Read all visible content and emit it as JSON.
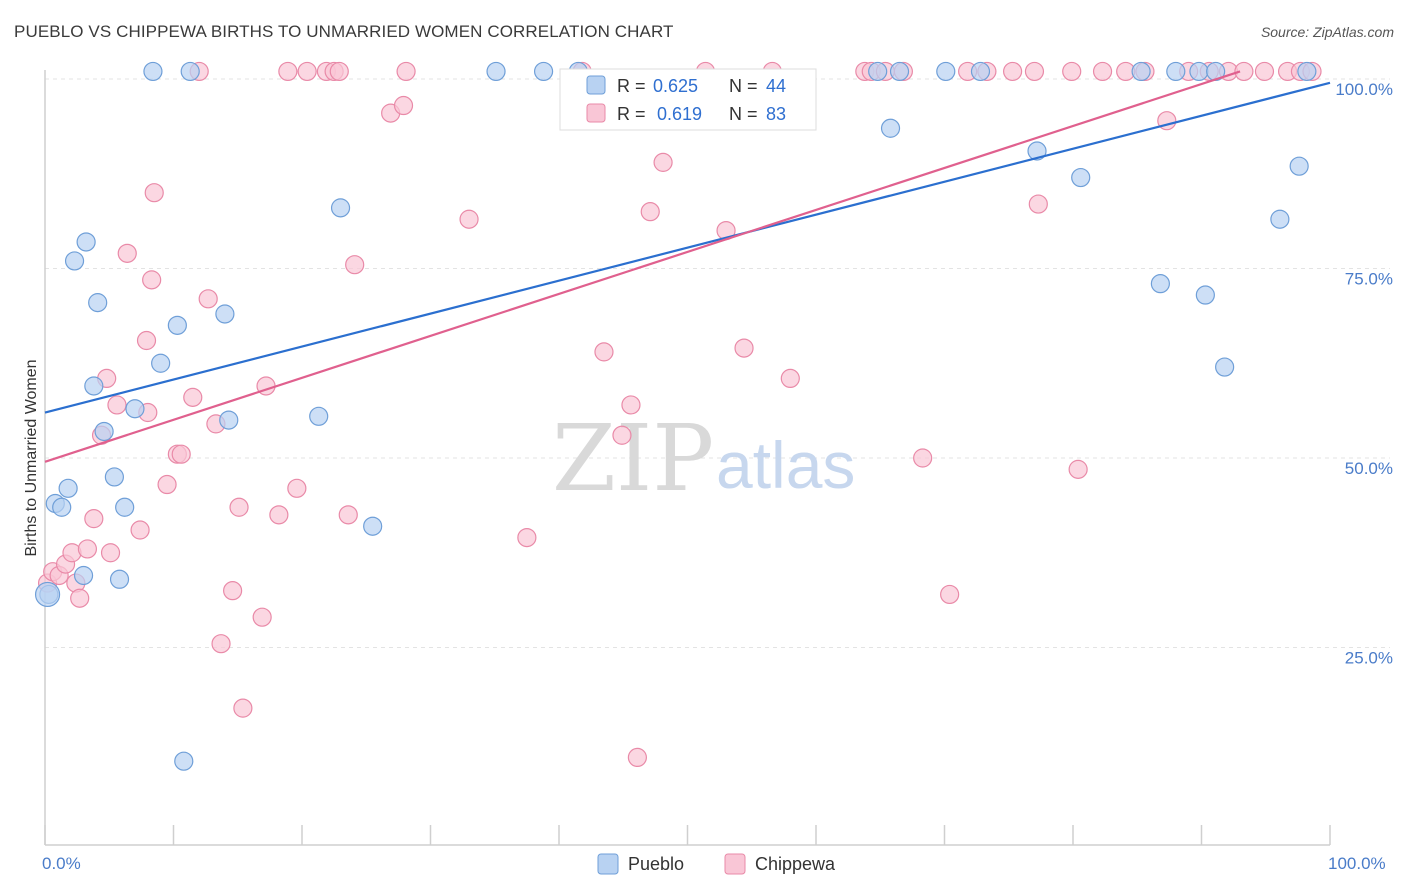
{
  "title": "PUEBLO VS CHIPPEWA BIRTHS TO UNMARRIED WOMEN CORRELATION CHART",
  "source": "Source: ZipAtlas.com",
  "watermark": {
    "zip": "ZIP",
    "atlas": "atlas"
  },
  "legend": {
    "r_label": "R =",
    "n_label": "N =",
    "pueblo": {
      "r": "0.625",
      "n": "44"
    },
    "chippewa": {
      "r": "0.619",
      "n": "83"
    }
  },
  "bottom_legend": {
    "pueblo": "Pueblo",
    "chippewa": "Chippewa"
  },
  "colors": {
    "pueblo_fill": "#b8d2f2",
    "pueblo_stroke": "#6f9fd8",
    "pueblo_line": "#2b6fcf",
    "chippewa_fill": "#f9c6d6",
    "chippewa_stroke": "#e98aa8",
    "chippewa_line": "#e0608e",
    "grid": "#e3e3e3",
    "tick_label": "#4a7cc9"
  },
  "chart_data": {
    "type": "scatter",
    "title": "PUEBLO VS CHIPPEWA BIRTHS TO UNMARRIED WOMEN CORRELATION CHART",
    "xlabel": "",
    "ylabel": "Births to Unmarried Women",
    "xlim": [
      0,
      100
    ],
    "ylim": [
      0,
      100
    ],
    "x_tick_labels": [
      "0.0%",
      "100.0%"
    ],
    "y_ticks": [
      25,
      50,
      75,
      100
    ],
    "y_tick_labels": [
      "25.0%",
      "50.0%",
      "75.0%",
      "100.0%"
    ],
    "grid": true,
    "legend_position": "top-center",
    "series": [
      {
        "name": "Pueblo",
        "r": 0.625,
        "n": 44,
        "trend": {
          "y_at_0": 56.0,
          "y_at_100": 99.5
        },
        "points": [
          [
            0.3,
            32.0
          ],
          [
            0.8,
            44.0
          ],
          [
            1.3,
            43.5
          ],
          [
            1.8,
            46.0
          ],
          [
            2.3,
            76.0
          ],
          [
            3.0,
            34.5
          ],
          [
            3.2,
            78.5
          ],
          [
            3.8,
            59.5
          ],
          [
            4.1,
            70.5
          ],
          [
            4.6,
            53.5
          ],
          [
            5.4,
            47.5
          ],
          [
            5.8,
            34.0
          ],
          [
            6.2,
            43.5
          ],
          [
            7.0,
            56.5
          ],
          [
            8.4,
            101.0
          ],
          [
            9.0,
            62.5
          ],
          [
            10.3,
            67.5
          ],
          [
            10.8,
            10.0
          ],
          [
            11.3,
            101.0
          ],
          [
            14.0,
            69.0
          ],
          [
            14.3,
            55.0
          ],
          [
            21.3,
            55.5
          ],
          [
            23.0,
            83.0
          ],
          [
            25.5,
            41.0
          ],
          [
            35.1,
            101.0
          ],
          [
            38.8,
            101.0
          ],
          [
            41.5,
            101.0
          ],
          [
            64.8,
            101.0
          ],
          [
            65.8,
            93.5
          ],
          [
            66.5,
            101.0
          ],
          [
            70.1,
            101.0
          ],
          [
            72.8,
            101.0
          ],
          [
            77.2,
            90.5
          ],
          [
            80.6,
            87.0
          ],
          [
            85.3,
            101.0
          ],
          [
            86.8,
            73.0
          ],
          [
            88.0,
            101.0
          ],
          [
            89.8,
            101.0
          ],
          [
            90.3,
            71.5
          ],
          [
            91.1,
            101.0
          ],
          [
            91.8,
            62.0
          ],
          [
            96.1,
            81.5
          ],
          [
            97.6,
            88.5
          ],
          [
            98.2,
            101.0
          ]
        ]
      },
      {
        "name": "Chippewa",
        "r": 0.619,
        "n": 83,
        "trend": {
          "y_at_0": 49.5,
          "y_at_93": 101.0
        },
        "points": [
          [
            0.2,
            33.5
          ],
          [
            0.6,
            35.0
          ],
          [
            1.1,
            34.5
          ],
          [
            1.6,
            36.0
          ],
          [
            2.1,
            37.5
          ],
          [
            2.4,
            33.5
          ],
          [
            2.7,
            31.5
          ],
          [
            3.3,
            38.0
          ],
          [
            3.8,
            42.0
          ],
          [
            4.4,
            53.0
          ],
          [
            4.8,
            60.5
          ],
          [
            5.1,
            37.5
          ],
          [
            5.6,
            57.0
          ],
          [
            6.4,
            77.0
          ],
          [
            7.4,
            40.5
          ],
          [
            7.9,
            65.5
          ],
          [
            8.0,
            56.0
          ],
          [
            8.3,
            73.5
          ],
          [
            8.5,
            85.0
          ],
          [
            9.5,
            46.5
          ],
          [
            10.3,
            50.5
          ],
          [
            10.6,
            50.5
          ],
          [
            11.5,
            58.0
          ],
          [
            12.0,
            101.0
          ],
          [
            12.7,
            71.0
          ],
          [
            13.3,
            54.5
          ],
          [
            13.7,
            25.5
          ],
          [
            14.6,
            32.5
          ],
          [
            15.1,
            43.5
          ],
          [
            15.4,
            17.0
          ],
          [
            16.9,
            29.0
          ],
          [
            17.2,
            59.5
          ],
          [
            18.2,
            42.5
          ],
          [
            18.9,
            101.0
          ],
          [
            19.6,
            46.0
          ],
          [
            20.4,
            101.0
          ],
          [
            21.9,
            101.0
          ],
          [
            22.5,
            101.0
          ],
          [
            22.9,
            101.0
          ],
          [
            23.6,
            42.5
          ],
          [
            24.1,
            75.5
          ],
          [
            26.9,
            95.5
          ],
          [
            27.9,
            96.5
          ],
          [
            28.1,
            101.0
          ],
          [
            33.0,
            81.5
          ],
          [
            37.5,
            39.5
          ],
          [
            41.8,
            101.0
          ],
          [
            43.5,
            64.0
          ],
          [
            44.9,
            53.0
          ],
          [
            45.6,
            57.0
          ],
          [
            46.1,
            10.5
          ],
          [
            47.1,
            82.5
          ],
          [
            48.1,
            89.0
          ],
          [
            51.4,
            101.0
          ],
          [
            53.0,
            80.0
          ],
          [
            54.4,
            64.5
          ],
          [
            56.6,
            101.0
          ],
          [
            58.0,
            60.5
          ],
          [
            63.8,
            101.0
          ],
          [
            64.3,
            101.0
          ],
          [
            65.4,
            101.0
          ],
          [
            66.8,
            101.0
          ],
          [
            68.3,
            50.0
          ],
          [
            70.4,
            32.0
          ],
          [
            71.8,
            101.0
          ],
          [
            73.3,
            101.0
          ],
          [
            75.3,
            101.0
          ],
          [
            77.0,
            101.0
          ],
          [
            77.3,
            83.5
          ],
          [
            79.9,
            101.0
          ],
          [
            80.4,
            48.5
          ],
          [
            82.3,
            101.0
          ],
          [
            84.1,
            101.0
          ],
          [
            85.6,
            101.0
          ],
          [
            87.3,
            94.5
          ],
          [
            89.0,
            101.0
          ],
          [
            90.6,
            101.0
          ],
          [
            92.1,
            101.0
          ],
          [
            93.3,
            101.0
          ],
          [
            94.9,
            101.0
          ],
          [
            96.7,
            101.0
          ],
          [
            97.7,
            101.0
          ],
          [
            98.6,
            101.0
          ]
        ]
      }
    ]
  }
}
